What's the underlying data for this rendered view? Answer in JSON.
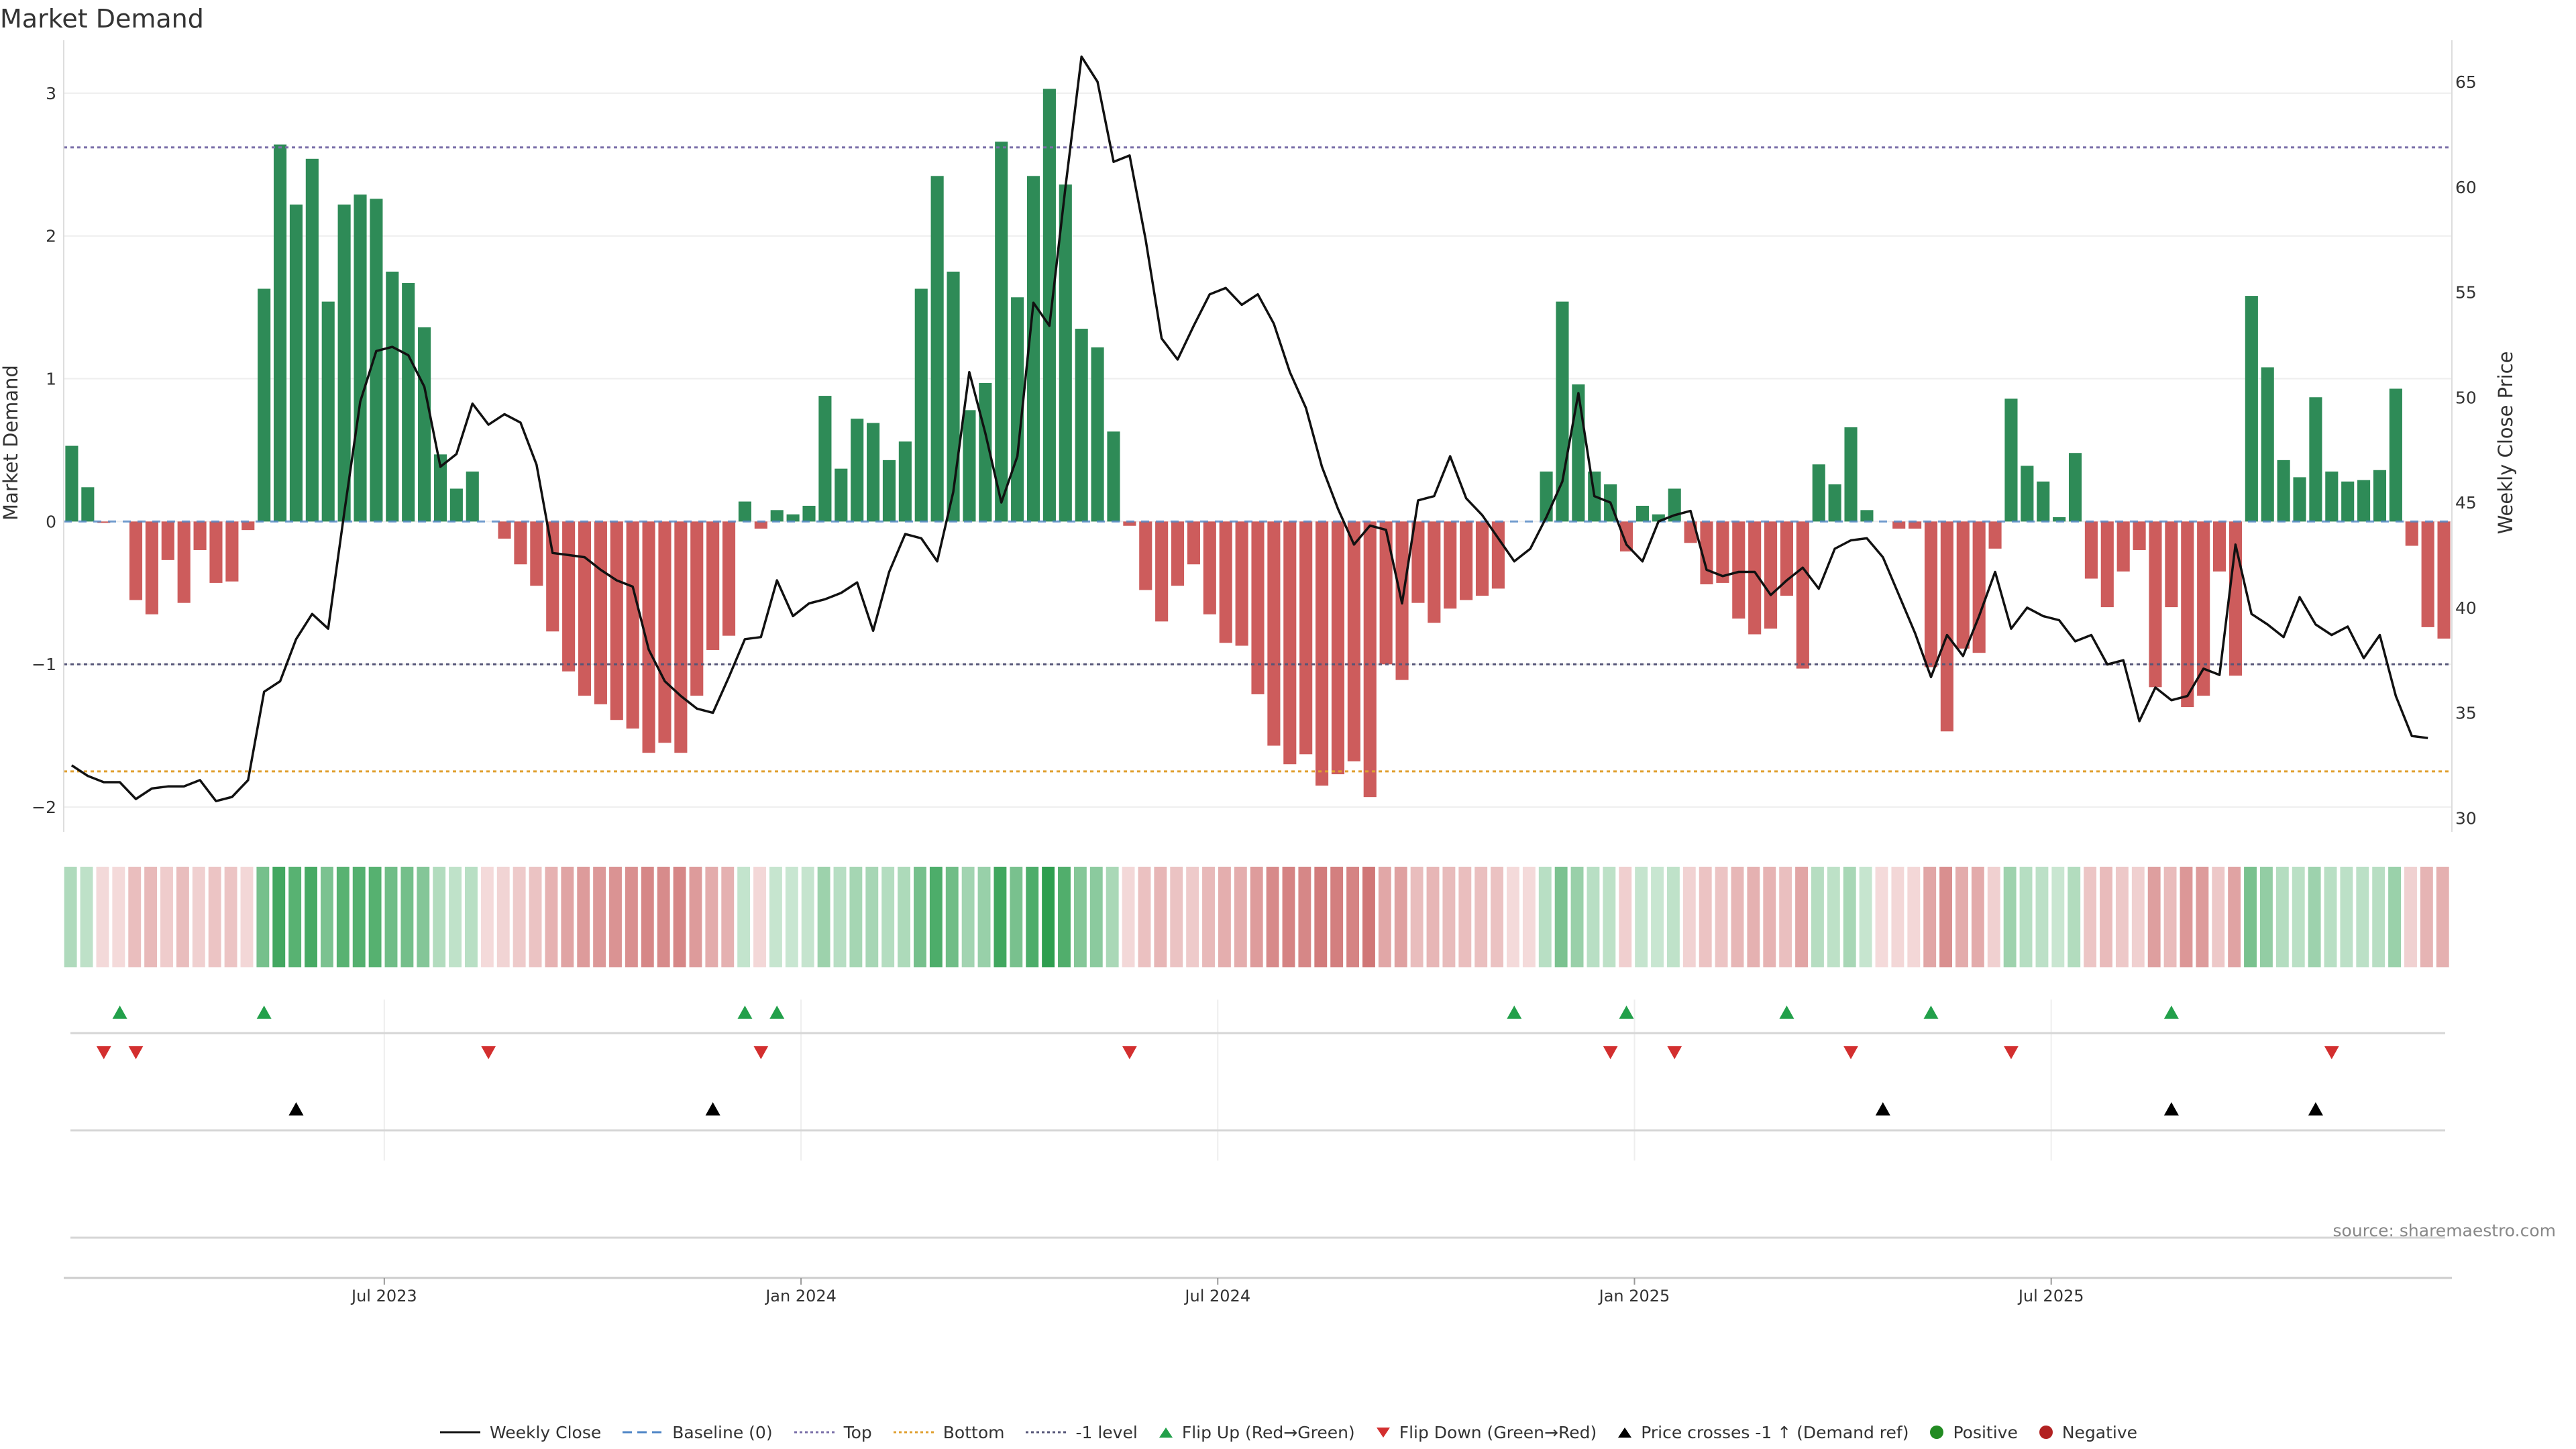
{
  "title": "Market Demand",
  "source": "source: sharemaestro.com",
  "legend": {
    "weekly_close": "Weekly Close",
    "baseline": "Baseline (0)",
    "top": "Top",
    "bottom": "Bottom",
    "minus1": "-1 level",
    "flip_up": "Flip Up (Red→Green)",
    "flip_down": "Flip Down (Green→Red)",
    "price_cross": "Price crosses -1 ↑ (Demand ref)",
    "positive": "Positive",
    "negative": "Negative"
  },
  "colors": {
    "positive": "#2e8b57",
    "negative": "#cd5c5c",
    "price": "#111111",
    "baseline": "#4f86c6",
    "top": "#7a6fa8",
    "bottom": "#e0a030",
    "minus1": "#555577",
    "flip_up": "#22a04a",
    "flip_down": "#d32f2f",
    "cross": "#000000"
  },
  "chart_data": {
    "type": "bar",
    "title": "Market Demand",
    "ylabel": "Market Demand",
    "y2label": "Weekly Close Price",
    "ylim": [
      -2.15,
      3.3
    ],
    "y2lim": [
      29.5,
      66.5
    ],
    "yticks": [
      -2,
      -1,
      0,
      1,
      2,
      3
    ],
    "y2ticks": [
      30,
      35,
      40,
      45,
      50,
      55,
      60,
      65
    ],
    "xticks": [
      "Jul 2023",
      "Jan 2024",
      "Jul 2024",
      "Jan 2025",
      "Jul 2025"
    ],
    "xtick_positions": [
      20,
      46,
      72,
      98,
      124
    ],
    "reference_lines": {
      "top": 2.62,
      "bottom": -1.75,
      "minus1": -1.0,
      "baseline": 0
    },
    "demand": [
      0.53,
      0.24,
      -0.01,
      0,
      -0.55,
      -0.65,
      -0.27,
      -0.57,
      -0.2,
      -0.43,
      -0.42,
      -0.06,
      1.63,
      2.64,
      2.22,
      2.54,
      1.54,
      2.22,
      2.29,
      2.26,
      1.75,
      1.67,
      1.36,
      0.47,
      0.23,
      0.35,
      0,
      -0.12,
      -0.3,
      -0.45,
      -0.77,
      -1.05,
      -1.22,
      -1.28,
      -1.39,
      -1.45,
      -1.62,
      -1.55,
      -1.62,
      -1.22,
      -0.9,
      -0.8,
      0.14,
      -0.05,
      0.08,
      0.05,
      0.11,
      0.88,
      0.37,
      0.72,
      0.69,
      0.43,
      0.56,
      1.63,
      2.42,
      1.75,
      0.78,
      0.97,
      2.66,
      1.57,
      2.42,
      3.03,
      2.36,
      1.35,
      1.22,
      0.63,
      -0.03,
      -0.48,
      -0.7,
      -0.45,
      -0.3,
      -0.65,
      -0.85,
      -0.87,
      -1.21,
      -1.57,
      -1.7,
      -1.63,
      -1.85,
      -1.77,
      -1.68,
      -1.93,
      -1.0,
      -1.11,
      -0.57,
      -0.71,
      -0.61,
      -0.55,
      -0.52,
      -0.47,
      0,
      0,
      0.35,
      1.54,
      0.96,
      0.35,
      0.26,
      -0.21,
      0.11,
      0.05,
      0.23,
      -0.15,
      -0.44,
      -0.43,
      -0.68,
      -0.79,
      -0.75,
      -0.52,
      -1.03,
      0.4,
      0.26,
      0.66,
      0.08,
      0,
      -0.05,
      -0.05,
      -1.02,
      -1.47,
      -0.89,
      -0.92,
      -0.19,
      0.86,
      0.39,
      0.28,
      0.03,
      0.48,
      -0.4,
      -0.6,
      -0.35,
      -0.2,
      -1.16,
      -0.6,
      -1.3,
      -1.22,
      -0.35,
      -1.08,
      1.58,
      1.08,
      0.43,
      0.31,
      0.87,
      0.35,
      0.28,
      0.29,
      0.36,
      0.93,
      -0.17,
      -0.74,
      -0.82
    ],
    "price": [
      32.5,
      32.0,
      31.7,
      31.7,
      30.9,
      31.4,
      31.5,
      31.5,
      31.8,
      30.8,
      31.0,
      31.8,
      36.0,
      36.5,
      38.5,
      39.7,
      39.0,
      44.5,
      49.8,
      52.2,
      52.4,
      52.0,
      50.5,
      46.7,
      47.3,
      49.7,
      48.7,
      49.2,
      48.8,
      46.8,
      42.6,
      42.5,
      42.4,
      41.8,
      41.3,
      41.0,
      38.0,
      36.5,
      35.8,
      35.2,
      35.0,
      36.7,
      38.5,
      38.6,
      41.3,
      39.6,
      40.2,
      40.4,
      40.7,
      41.2,
      38.9,
      41.7,
      43.5,
      43.3,
      42.2,
      45.5,
      51.2,
      48.3,
      45.0,
      47.2,
      54.5,
      53.4,
      60.0,
      66.2,
      65.0,
      61.2,
      61.5,
      57.5,
      52.8,
      51.8,
      53.4,
      54.9,
      55.2,
      54.4,
      54.9,
      53.5,
      51.2,
      49.5,
      46.7,
      44.7,
      43.0,
      43.9,
      43.7,
      40.2,
      45.1,
      45.3,
      47.2,
      45.2,
      44.4,
      43.3,
      42.2,
      42.8,
      44.3,
      46.0,
      50.2,
      45.3,
      45.0,
      43.0,
      42.2,
      44.1,
      44.4,
      44.6,
      41.8,
      41.5,
      41.7,
      41.7,
      40.6,
      41.3,
      41.9,
      40.9,
      42.8,
      43.2,
      43.3,
      42.4,
      40.6,
      38.8,
      36.7,
      38.7,
      37.7,
      39.6,
      41.7,
      39.0,
      40.0,
      39.6,
      39.4,
      38.4,
      38.7,
      37.3,
      37.5,
      34.6,
      36.2,
      35.6,
      35.8,
      37.1,
      36.8,
      43.0,
      39.7,
      39.2,
      38.6,
      40.5,
      39.2,
      38.7,
      39.1,
      37.6,
      38.7,
      35.8,
      33.9,
      33.8
    ],
    "flip_up_idx": [
      3,
      12,
      42,
      44,
      90,
      97,
      107,
      116,
      131
    ],
    "flip_down_idx": [
      2,
      4,
      26,
      43,
      66,
      96,
      100,
      111,
      121,
      141
    ],
    "price_cross_idx": [
      14,
      40,
      113,
      131,
      140
    ]
  }
}
